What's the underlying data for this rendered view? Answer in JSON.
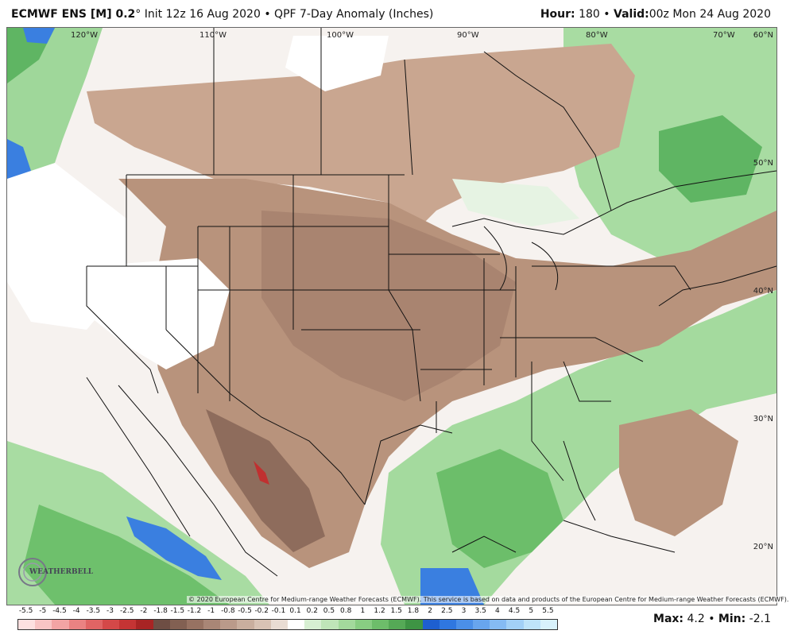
{
  "header": {
    "model": "ECMWF ENS [M] 0.2",
    "degree": "°",
    "init": "Init 12z 16 Aug 2020",
    "bullet": "•",
    "product": "QPF 7-Day Anomaly (Inches)",
    "hour_label": "Hour:",
    "hour_value": "180",
    "valid_label": "Valid:",
    "valid_value": "00z Mon 24 Aug 2020"
  },
  "map": {
    "longitude_labels": [
      "120°W",
      "110°W",
      "100°W",
      "90°W",
      "80°W",
      "70°W"
    ],
    "latitude_labels": [
      "60°N",
      "50°N",
      "40°N",
      "30°N",
      "20°N"
    ],
    "credit": "© 2020 European Centre for Medium-range Weather Forecasts (ECMWF). This service is based on data and products of the European Centre for Medium-range Weather Forecasts (ECMWF).",
    "logo_text": "WEATHERBELL"
  },
  "legend": {
    "labels": [
      "-5.5",
      "-5",
      "-4.5",
      "-4",
      "-3.5",
      "-3",
      "-2.5",
      "-2",
      "-1.8",
      "-1.5",
      "-1.2",
      "-1",
      "-0.8",
      "-0.5",
      "-0.2",
      "-0.1",
      "0.1",
      "0.2",
      "0.5",
      "0.8",
      "1",
      "1.2",
      "1.5",
      "1.8",
      "2",
      "2.5",
      "3",
      "3.5",
      "4",
      "4.5",
      "5",
      "5.5"
    ],
    "colors": [
      "#fde0e0",
      "#f8c4c4",
      "#f2a4a4",
      "#ea8282",
      "#e06464",
      "#d44848",
      "#c43434",
      "#a82424",
      "#6e4e44",
      "#826052",
      "#977262",
      "#a98676",
      "#ba9a8a",
      "#c9ae9e",
      "#d8c2b4",
      "#e9dcd3",
      "#ffffff",
      "#d7efd2",
      "#bfe5b8",
      "#a3d99c",
      "#88cd82",
      "#6dbd6a",
      "#55a956",
      "#3e9444",
      "#1e5fd0",
      "#2f77e0",
      "#4b8fe8",
      "#68a5ee",
      "#85bbf3",
      "#a2d0f6",
      "#bee3f9",
      "#d8f2fc"
    ]
  },
  "stats": {
    "max_label": "Max:",
    "max_value": "4.2",
    "bullet": "•",
    "min_label": "Min:",
    "min_value": "-2.1"
  }
}
